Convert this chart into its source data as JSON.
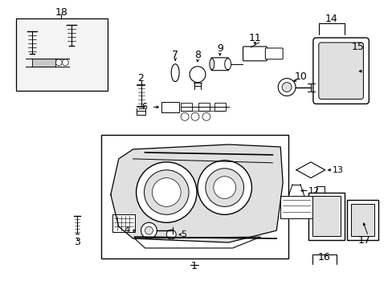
{
  "bg_color": "#ffffff",
  "line_color": "#000000",
  "light_gray": "#e0e0e0",
  "mid_gray": "#c8c8c8"
}
